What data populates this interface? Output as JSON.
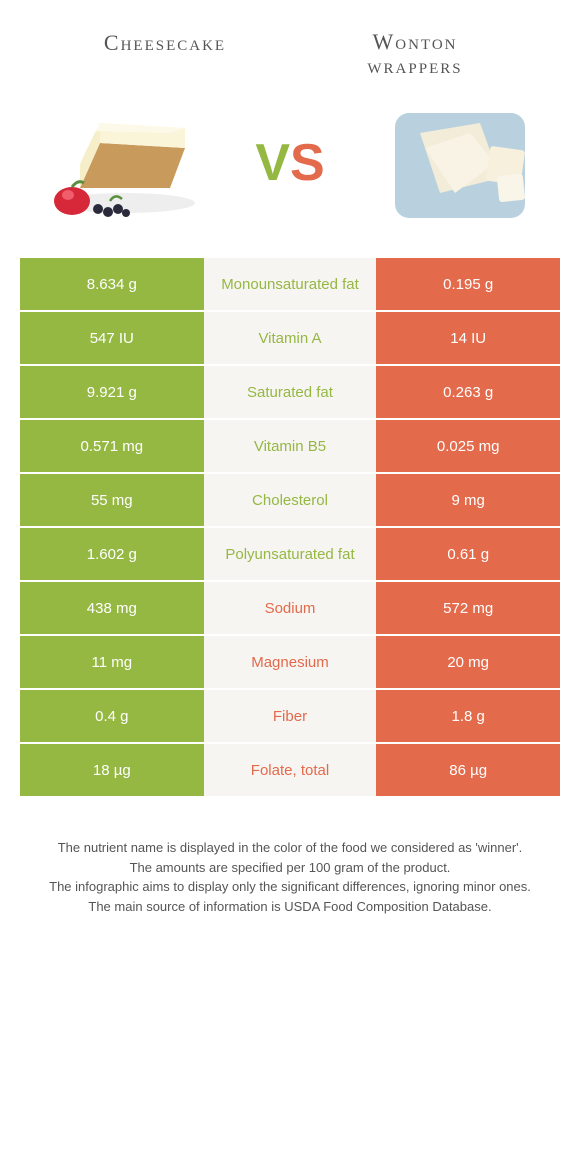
{
  "colors": {
    "green": "#95b843",
    "orange": "#e36a4b",
    "mid_bg": "#f7f5f2",
    "vs_v": "#95b843",
    "vs_s": "#e36a4b"
  },
  "header": {
    "left": "Cheesecake",
    "right_line1": "Wonton",
    "right_line2": "wrappers"
  },
  "vs": {
    "v": "V",
    "s": "S"
  },
  "rows": [
    {
      "left": "8.634 g",
      "mid": "Monounsaturated fat",
      "right": "0.195 g",
      "winner": "left"
    },
    {
      "left": "547 IU",
      "mid": "Vitamin A",
      "right": "14 IU",
      "winner": "left"
    },
    {
      "left": "9.921 g",
      "mid": "Saturated fat",
      "right": "0.263 g",
      "winner": "left"
    },
    {
      "left": "0.571 mg",
      "mid": "Vitamin B5",
      "right": "0.025 mg",
      "winner": "left"
    },
    {
      "left": "55 mg",
      "mid": "Cholesterol",
      "right": "9 mg",
      "winner": "left"
    },
    {
      "left": "1.602 g",
      "mid": "Polyunsaturated fat",
      "right": "0.61 g",
      "winner": "left"
    },
    {
      "left": "438 mg",
      "mid": "Sodium",
      "right": "572 mg",
      "winner": "right"
    },
    {
      "left": "11 mg",
      "mid": "Magnesium",
      "right": "20 mg",
      "winner": "right"
    },
    {
      "left": "0.4 g",
      "mid": "Fiber",
      "right": "1.8 g",
      "winner": "right"
    },
    {
      "left": "18 µg",
      "mid": "Folate, total",
      "right": "86 µg",
      "winner": "right"
    }
  ],
  "footnotes": [
    "The nutrient name is displayed in the color of the food we considered as 'winner'.",
    "The amounts are specified per 100 gram of the product.",
    "The infographic aims to display only the significant differences, ignoring minor ones.",
    "The main source of information is USDA Food Composition Database."
  ]
}
